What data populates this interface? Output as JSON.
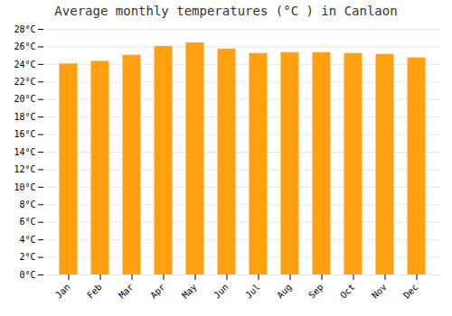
{
  "chart_data": {
    "type": "bar",
    "title": "Average monthly temperatures (°C ) in Canlaon",
    "categories": [
      "Jan",
      "Feb",
      "Mar",
      "Apr",
      "May",
      "Jun",
      "Jul",
      "Aug",
      "Sep",
      "Oct",
      "Nov",
      "Dec"
    ],
    "values": [
      24.0,
      24.3,
      25.0,
      26.0,
      26.4,
      25.7,
      25.2,
      25.3,
      25.3,
      25.2,
      25.1,
      24.7
    ],
    "color": "#FFA010",
    "ylim": [
      0,
      28
    ],
    "yticks": [
      {
        "value": 0,
        "label": "0°C"
      },
      {
        "value": 2,
        "label": "2°C"
      },
      {
        "value": 4,
        "label": "4°C"
      },
      {
        "value": 6,
        "label": "6°C"
      },
      {
        "value": 8,
        "label": "8°C"
      },
      {
        "value": 10,
        "label": "10°C"
      },
      {
        "value": 12,
        "label": "12°C"
      },
      {
        "value": 14,
        "label": "14°C"
      },
      {
        "value": 16,
        "label": "16°C"
      },
      {
        "value": 18,
        "label": "18°C"
      },
      {
        "value": 20,
        "label": "20°C"
      },
      {
        "value": 22,
        "label": "22°C"
      },
      {
        "value": 24,
        "label": "24°C"
      },
      {
        "value": 26,
        "label": "26°C"
      },
      {
        "value": 28,
        "label": "28°C"
      }
    ],
    "grid": true
  }
}
